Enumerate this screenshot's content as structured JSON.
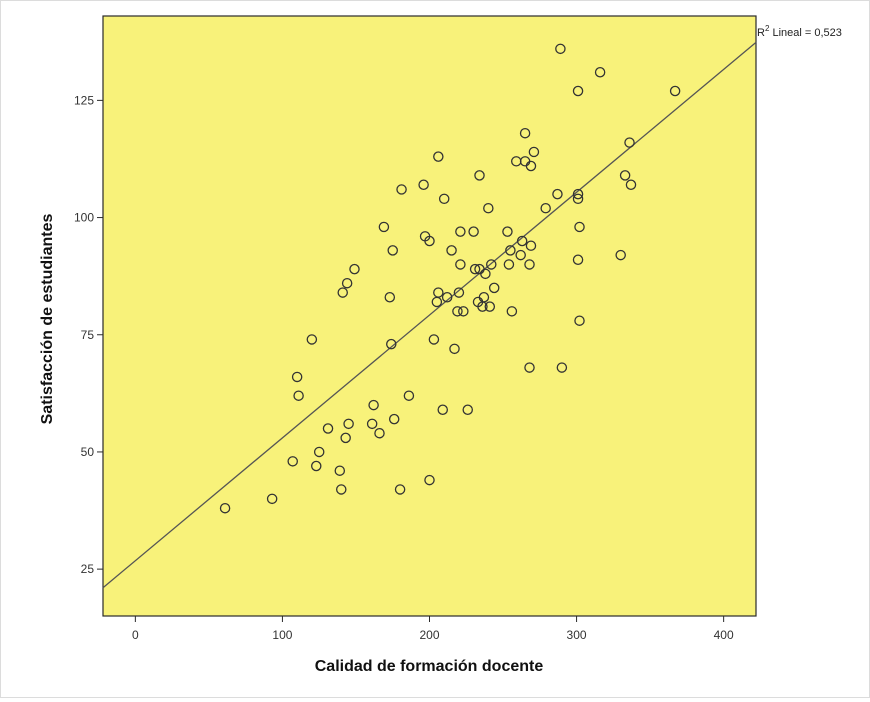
{
  "chart_data": {
    "type": "scatter",
    "title": "",
    "xlabel": "Calidad de formación docente",
    "ylabel": "Satisfacción de estudiantes",
    "xlim": [
      -22,
      422
    ],
    "ylim": [
      15,
      143
    ],
    "xticks": [
      0,
      100,
      200,
      300,
      400
    ],
    "yticks": [
      25,
      50,
      75,
      100,
      125
    ],
    "grid": false,
    "plot_background": "#f8f27a",
    "point_color": "#333333",
    "line_color": "#555555",
    "fit_line": {
      "intercept": 26.8,
      "slope": 0.262
    },
    "annotation": {
      "prefix": "R",
      "sup": "2",
      "text": " Lineal = 0,523"
    },
    "points": [
      {
        "x": 61,
        "y": 38
      },
      {
        "x": 93,
        "y": 40
      },
      {
        "x": 107,
        "y": 48
      },
      {
        "x": 110,
        "y": 66
      },
      {
        "x": 111,
        "y": 62
      },
      {
        "x": 120,
        "y": 74
      },
      {
        "x": 123,
        "y": 47
      },
      {
        "x": 125,
        "y": 50
      },
      {
        "x": 131,
        "y": 55
      },
      {
        "x": 139,
        "y": 46
      },
      {
        "x": 140,
        "y": 42
      },
      {
        "x": 141,
        "y": 84
      },
      {
        "x": 143,
        "y": 53
      },
      {
        "x": 144,
        "y": 86
      },
      {
        "x": 145,
        "y": 56
      },
      {
        "x": 149,
        "y": 89
      },
      {
        "x": 161,
        "y": 56
      },
      {
        "x": 162,
        "y": 60
      },
      {
        "x": 166,
        "y": 54
      },
      {
        "x": 169,
        "y": 98
      },
      {
        "x": 173,
        "y": 83
      },
      {
        "x": 174,
        "y": 73
      },
      {
        "x": 175,
        "y": 93
      },
      {
        "x": 176,
        "y": 57
      },
      {
        "x": 180,
        "y": 42
      },
      {
        "x": 181,
        "y": 106
      },
      {
        "x": 186,
        "y": 62
      },
      {
        "x": 196,
        "y": 107
      },
      {
        "x": 197,
        "y": 96
      },
      {
        "x": 200,
        "y": 95
      },
      {
        "x": 200,
        "y": 44
      },
      {
        "x": 203,
        "y": 74
      },
      {
        "x": 205,
        "y": 82
      },
      {
        "x": 206,
        "y": 84
      },
      {
        "x": 206,
        "y": 113
      },
      {
        "x": 209,
        "y": 59
      },
      {
        "x": 210,
        "y": 104
      },
      {
        "x": 212,
        "y": 83
      },
      {
        "x": 215,
        "y": 93
      },
      {
        "x": 217,
        "y": 72
      },
      {
        "x": 219,
        "y": 80
      },
      {
        "x": 220,
        "y": 84
      },
      {
        "x": 221,
        "y": 90
      },
      {
        "x": 221,
        "y": 97
      },
      {
        "x": 223,
        "y": 80
      },
      {
        "x": 226,
        "y": 59
      },
      {
        "x": 230,
        "y": 97
      },
      {
        "x": 231,
        "y": 89
      },
      {
        "x": 233,
        "y": 82
      },
      {
        "x": 234,
        "y": 89
      },
      {
        "x": 234,
        "y": 109
      },
      {
        "x": 236,
        "y": 81
      },
      {
        "x": 237,
        "y": 83
      },
      {
        "x": 238,
        "y": 88
      },
      {
        "x": 240,
        "y": 102
      },
      {
        "x": 241,
        "y": 81
      },
      {
        "x": 242,
        "y": 90
      },
      {
        "x": 244,
        "y": 85
      },
      {
        "x": 253,
        "y": 97
      },
      {
        "x": 254,
        "y": 90
      },
      {
        "x": 255,
        "y": 93
      },
      {
        "x": 256,
        "y": 80
      },
      {
        "x": 259,
        "y": 112
      },
      {
        "x": 262,
        "y": 92
      },
      {
        "x": 263,
        "y": 95
      },
      {
        "x": 265,
        "y": 118
      },
      {
        "x": 265,
        "y": 112
      },
      {
        "x": 268,
        "y": 90
      },
      {
        "x": 268,
        "y": 68
      },
      {
        "x": 269,
        "y": 94
      },
      {
        "x": 269,
        "y": 111
      },
      {
        "x": 271,
        "y": 114
      },
      {
        "x": 279,
        "y": 102
      },
      {
        "x": 287,
        "y": 105
      },
      {
        "x": 289,
        "y": 136
      },
      {
        "x": 290,
        "y": 68
      },
      {
        "x": 301,
        "y": 104
      },
      {
        "x": 301,
        "y": 105
      },
      {
        "x": 301,
        "y": 127
      },
      {
        "x": 301,
        "y": 91
      },
      {
        "x": 302,
        "y": 98
      },
      {
        "x": 302,
        "y": 78
      },
      {
        "x": 316,
        "y": 131
      },
      {
        "x": 330,
        "y": 92
      },
      {
        "x": 333,
        "y": 109
      },
      {
        "x": 336,
        "y": 116
      },
      {
        "x": 337,
        "y": 107
      },
      {
        "x": 367,
        "y": 127
      }
    ]
  }
}
